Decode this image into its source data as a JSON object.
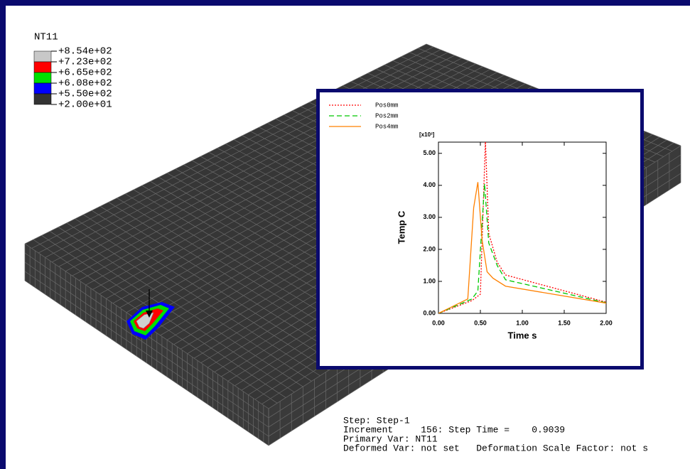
{
  "contour_legend": {
    "title": "NT11",
    "labels": [
      "+8.54e+02",
      "+7.23e+02",
      "+6.65e+02",
      "+6.08e+02",
      "+5.50e+02",
      "+2.00e+01"
    ],
    "colors": [
      "#c8c8c8",
      "#ff0000",
      "#00e000",
      "#0000ff",
      "#333333"
    ]
  },
  "info": [
    "Step: Step-1",
    "Increment     156: Step Time =    0.9039",
    "Primary Var: NT11",
    "Deformed Var: not set   Deformation Scale Factor: not s"
  ],
  "chart_data": {
    "type": "line",
    "xlabel": "Time s",
    "ylabel": "Temp C",
    "y_multiplier": "[x10³]",
    "xlim": [
      0,
      2
    ],
    "ylim": [
      0,
      5.35
    ],
    "xticks": [
      {
        "value": 0,
        "label": "0.00"
      },
      {
        "value": 0.5,
        "label": "0.50"
      },
      {
        "value": 1,
        "label": "1.00"
      },
      {
        "value": 1.5,
        "label": "1.50"
      },
      {
        "value": 2,
        "label": "2.00"
      }
    ],
    "yticks": [
      {
        "value": 0,
        "label": "0.00"
      },
      {
        "value": 1,
        "label": "1.00"
      },
      {
        "value": 2,
        "label": "2.00"
      },
      {
        "value": 3,
        "label": "3.00"
      },
      {
        "value": 4,
        "label": "4.00"
      },
      {
        "value": 5,
        "label": "5.00"
      }
    ],
    "series": [
      {
        "name": "Pos0mm",
        "color": "#ff0000",
        "dash": "2,2",
        "x": [
          0,
          0.4,
          0.5,
          0.56,
          0.6,
          0.7,
          0.8,
          2.0
        ],
        "values": [
          0,
          0.4,
          0.6,
          5.4,
          2.5,
          1.6,
          1.2,
          0.35
        ]
      },
      {
        "name": "Pos2mm",
        "color": "#00c800",
        "dash": "7,4",
        "x": [
          0,
          0.4,
          0.47,
          0.55,
          0.6,
          0.7,
          0.8,
          2.0
        ],
        "values": [
          0,
          0.45,
          0.7,
          4.05,
          2.2,
          1.5,
          1.05,
          0.33
        ]
      },
      {
        "name": "Pos4mm",
        "color": "#ff8000",
        "dash": "none",
        "x": [
          0,
          0.35,
          0.42,
          0.47,
          0.52,
          0.58,
          0.65,
          0.8,
          2.0
        ],
        "values": [
          0,
          0.45,
          3.3,
          4.1,
          2.3,
          1.3,
          1.1,
          0.85,
          0.32
        ]
      }
    ]
  }
}
